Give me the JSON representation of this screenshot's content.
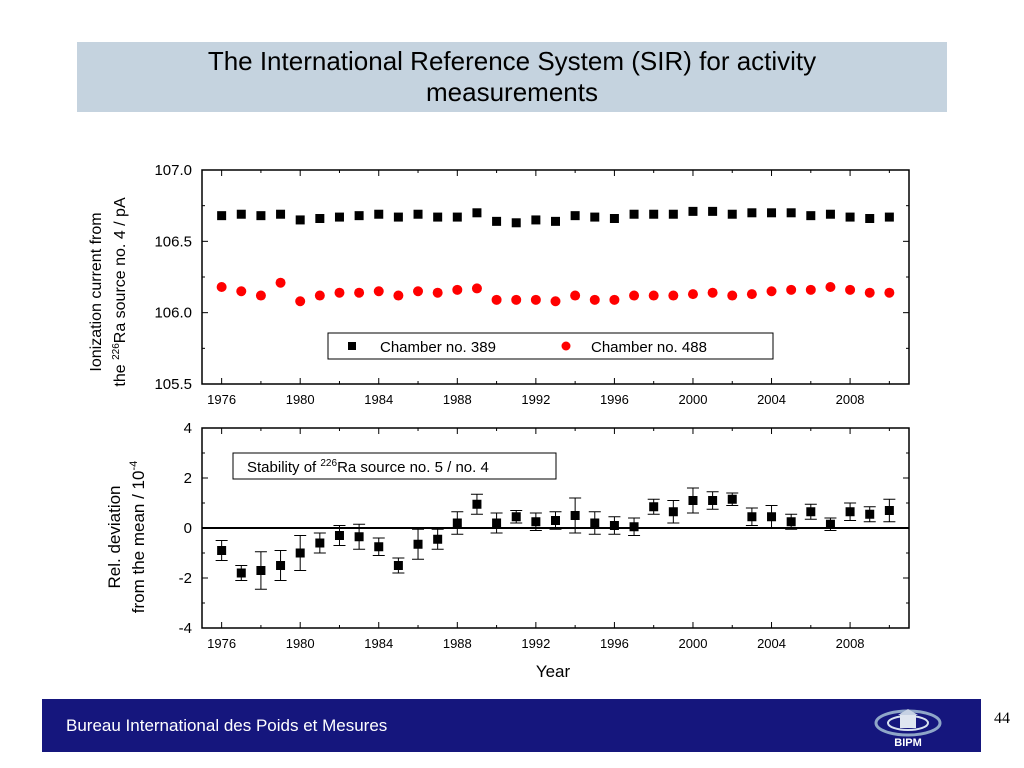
{
  "slide": {
    "title": "The International Reference System (SIR) for activity measurements",
    "footer_text": "Bureau International des Poids et Mesures",
    "page_number": "44",
    "logo_text": "BIPM",
    "colors": {
      "title_band": "#c5d3df",
      "footer_band": "#15167d",
      "series_chamber_389": "#000000",
      "series_chamber_488": "#ff0000"
    }
  },
  "chart_data": [
    {
      "type": "scatter",
      "title": "",
      "xlabel": "",
      "ylabel_line1": "Ionization current from",
      "ylabel_line2_pre": "the ",
      "ylabel_line2_sup": "226",
      "ylabel_line2_post": "Ra source no. 4  / pA",
      "xlim": [
        1975,
        2011
      ],
      "ylim": [
        105.5,
        107.0
      ],
      "x_ticks": [
        1976,
        1980,
        1984,
        1988,
        1992,
        1996,
        2000,
        2004,
        2008
      ],
      "y_ticks": [
        105.5,
        106.0,
        106.5,
        107.0
      ],
      "y_tick_labels": [
        "105.5",
        "106.0",
        "106.5",
        "107.0"
      ],
      "legend_position": "bottom-right",
      "series": [
        {
          "name": "Chamber no. 389",
          "marker": "square",
          "x": [
            1976,
            1977,
            1978,
            1979,
            1980,
            1981,
            1982,
            1983,
            1984,
            1985,
            1986,
            1987,
            1988,
            1989,
            1990,
            1991,
            1992,
            1993,
            1994,
            1995,
            1996,
            1997,
            1998,
            1999,
            2000,
            2001,
            2002,
            2003,
            2004,
            2005,
            2006,
            2007,
            2008,
            2009,
            2010
          ],
          "y": [
            106.68,
            106.69,
            106.68,
            106.69,
            106.65,
            106.66,
            106.67,
            106.68,
            106.69,
            106.67,
            106.69,
            106.67,
            106.67,
            106.7,
            106.64,
            106.63,
            106.65,
            106.64,
            106.68,
            106.67,
            106.66,
            106.69,
            106.69,
            106.69,
            106.71,
            106.71,
            106.69,
            106.7,
            106.7,
            106.7,
            106.68,
            106.69,
            106.67,
            106.66,
            106.67
          ]
        },
        {
          "name": "Chamber no. 488",
          "marker": "circle",
          "x": [
            1976,
            1977,
            1978,
            1979,
            1980,
            1981,
            1982,
            1983,
            1984,
            1985,
            1986,
            1987,
            1988,
            1989,
            1990,
            1991,
            1992,
            1993,
            1994,
            1995,
            1996,
            1997,
            1998,
            1999,
            2000,
            2001,
            2002,
            2003,
            2004,
            2005,
            2006,
            2007,
            2008,
            2009,
            2010
          ],
          "y": [
            106.18,
            106.15,
            106.12,
            106.21,
            106.08,
            106.12,
            106.14,
            106.14,
            106.15,
            106.12,
            106.15,
            106.14,
            106.16,
            106.17,
            106.09,
            106.09,
            106.09,
            106.08,
            106.12,
            106.09,
            106.09,
            106.12,
            106.12,
            106.12,
            106.13,
            106.14,
            106.12,
            106.13,
            106.15,
            106.16,
            106.16,
            106.18,
            106.16,
            106.14,
            106.14
          ]
        }
      ]
    },
    {
      "type": "scatter",
      "title": "",
      "xlabel": "Year",
      "ylabel_line1": "Rel. deviation",
      "ylabel_line2_pre": "from the mean  / 10",
      "ylabel_line2_sup": "-4",
      "ylabel_line2_post": "",
      "xlim": [
        1975,
        2011
      ],
      "ylim": [
        -4,
        4
      ],
      "x_ticks": [
        1976,
        1980,
        1984,
        1988,
        1992,
        1996,
        2000,
        2004,
        2008
      ],
      "y_ticks": [
        -4,
        -2,
        0,
        2,
        4
      ],
      "y_tick_labels": [
        "-4",
        "-2",
        "0",
        "2",
        "4"
      ],
      "zero_line": true,
      "annotation_pre": "Stability of ",
      "annotation_sup": "226",
      "annotation_post": "Ra source no. 5 / no. 4",
      "series": [
        {
          "name": "",
          "marker": "square",
          "x": [
            1976,
            1977,
            1978,
            1979,
            1980,
            1981,
            1982,
            1983,
            1984,
            1985,
            1986,
            1987,
            1988,
            1989,
            1990,
            1991,
            1992,
            1993,
            1994,
            1995,
            1996,
            1997,
            1998,
            1999,
            2000,
            2001,
            2002,
            2003,
            2004,
            2005,
            2006,
            2007,
            2008,
            2009,
            2010
          ],
          "y": [
            -0.9,
            -1.8,
            -1.7,
            -1.5,
            -1.0,
            -0.6,
            -0.3,
            -0.35,
            -0.75,
            -1.5,
            -0.65,
            -0.45,
            0.2,
            0.95,
            0.2,
            0.45,
            0.25,
            0.3,
            0.5,
            0.2,
            0.1,
            0.05,
            0.85,
            0.65,
            1.1,
            1.1,
            1.15,
            0.45,
            0.45,
            0.25,
            0.65,
            0.15,
            0.65,
            0.55,
            0.7
          ],
          "error": [
            0.4,
            0.3,
            0.75,
            0.6,
            0.7,
            0.4,
            0.4,
            0.5,
            0.35,
            0.3,
            0.6,
            0.4,
            0.45,
            0.4,
            0.4,
            0.25,
            0.35,
            0.35,
            0.7,
            0.45,
            0.35,
            0.35,
            0.3,
            0.45,
            0.5,
            0.35,
            0.25,
            0.35,
            0.45,
            0.3,
            0.3,
            0.25,
            0.35,
            0.3,
            0.45
          ]
        }
      ]
    }
  ]
}
